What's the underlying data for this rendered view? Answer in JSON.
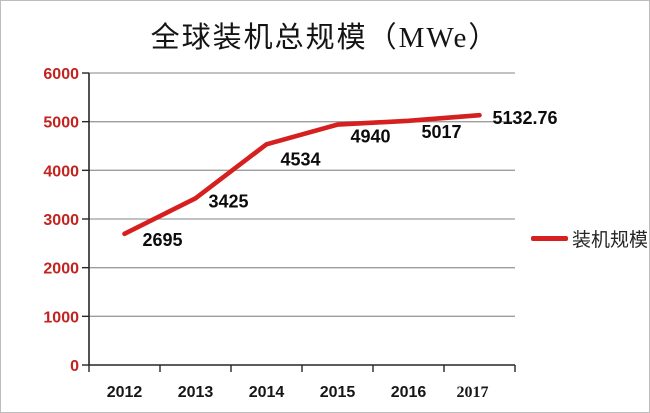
{
  "title": "全球装机总规模（MWe）",
  "legend": {
    "label": "装机规模"
  },
  "colors": {
    "line": "#d6201f",
    "ytick_label": "#c2231f",
    "gridline": "#9d9d9d",
    "axis": "#262626",
    "data_label": "#0c0c0c",
    "background": "#ffffff"
  },
  "chart_data": {
    "type": "line",
    "title": "全球装机总规模（MWe）",
    "categories": [
      "2012",
      "2013",
      "2014",
      "2015",
      "2016",
      "2017"
    ],
    "series": [
      {
        "name": "装机规模",
        "values": [
          2695,
          3425,
          4534,
          4940,
          5017,
          5132.76
        ]
      }
    ],
    "data_labels": [
      "2695",
      "3425",
      "4534",
      "4940",
      "5017",
      "5132.76"
    ],
    "xlabel": "",
    "ylabel": "",
    "ylim": [
      0,
      6000
    ],
    "yticks": [
      0,
      1000,
      2000,
      3000,
      4000,
      5000,
      6000
    ],
    "grid": true,
    "legend_position": "right"
  }
}
